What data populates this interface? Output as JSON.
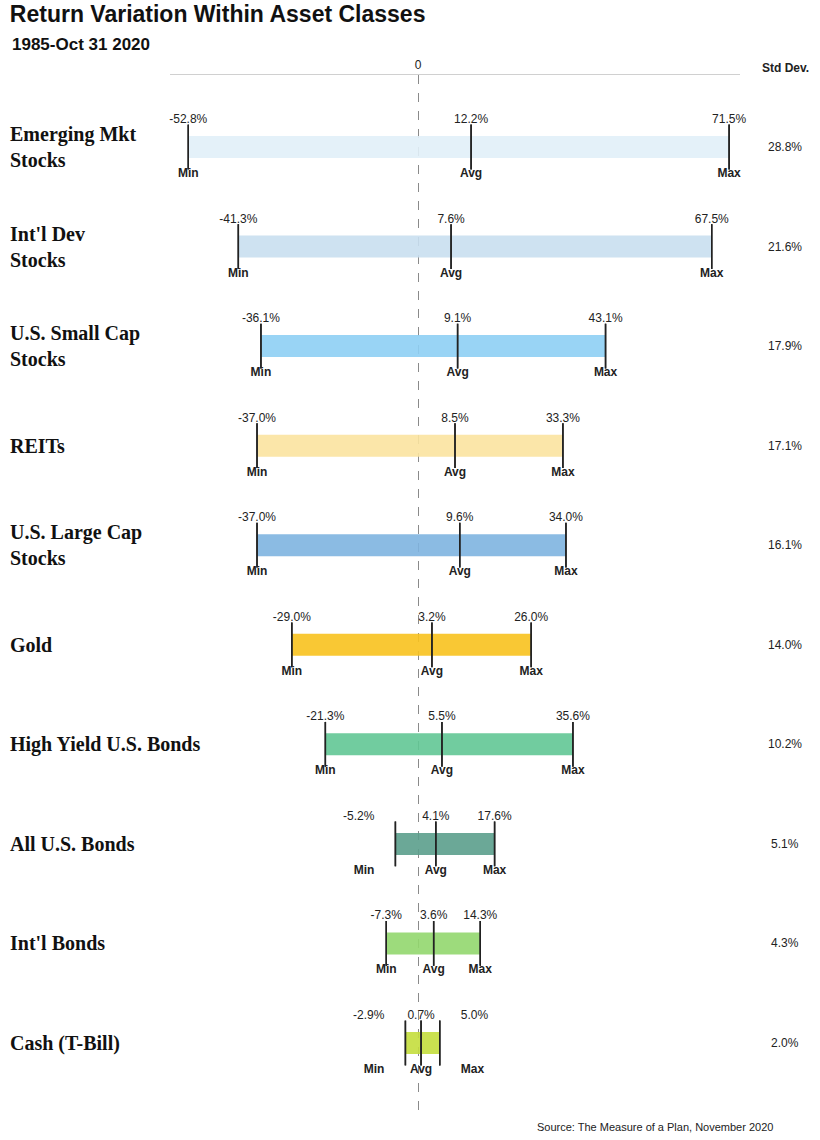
{
  "chart_data": {
    "type": "range",
    "orientation": "horizontal",
    "title": "Return Variation Within Asset Classes",
    "subtitle": "1985-Oct 31 2020",
    "categories": [
      "Emerging Mkt\nStocks",
      "Int'l Dev\nStocks",
      "U.S. Small Cap\nStocks",
      "REITs",
      "U.S. Large Cap\nStocks",
      "Gold",
      "High Yield U.S. Bonds",
      "All U.S. Bonds",
      "Int'l Bonds",
      "Cash (T-Bill)"
    ],
    "colors": [
      "#e2f0f9",
      "#c9dff0",
      "#8fd0f5",
      "#fbe4a0",
      "#7fb4e0",
      "#f9c31f",
      "#62c795",
      "#5c9f8c",
      "#93d86e",
      "#c5de3e"
    ],
    "series": [
      {
        "name": "Min",
        "values": [
          -52.8,
          -41.3,
          -36.1,
          -37.0,
          -37.0,
          -29.0,
          -21.3,
          -5.2,
          -7.3,
          -2.9
        ],
        "value_labels": [
          "-52.8%",
          "-41.3%",
          "-36.1%",
          "-37.0%",
          "-37.0%",
          "-29.0%",
          "-21.3%",
          "-5.2%",
          "-7.3%",
          "-2.9%"
        ]
      },
      {
        "name": "Avg",
        "values": [
          12.2,
          7.6,
          9.1,
          8.5,
          9.6,
          3.2,
          5.5,
          4.1,
          3.6,
          0.7
        ],
        "value_labels": [
          "12.2%",
          "7.6%",
          "9.1%",
          "8.5%",
          "9.6%",
          "3.2%",
          "5.5%",
          "4.1%",
          "3.6%",
          "0.7%"
        ]
      },
      {
        "name": "Max",
        "values": [
          71.5,
          67.5,
          43.1,
          33.3,
          34.0,
          26.0,
          35.6,
          17.6,
          14.3,
          5.0
        ],
        "value_labels": [
          "71.5%",
          "67.5%",
          "43.1%",
          "33.3%",
          "34.0%",
          "26.0%",
          "35.6%",
          "17.6%",
          "14.3%",
          "5.0%"
        ]
      }
    ],
    "std_dev": {
      "name": "Std Dev.",
      "values": [
        28.8,
        21.6,
        17.9,
        17.1,
        16.1,
        14.0,
        10.2,
        5.1,
        4.3,
        2.0
      ],
      "value_labels": [
        "28.8%",
        "21.6%",
        "17.9%",
        "17.1%",
        "16.1%",
        "14.0%",
        "10.2%",
        "5.1%",
        "4.3%",
        "2.0%"
      ]
    },
    "xlim": [
      -57,
      74
    ],
    "xticks": [
      0
    ],
    "grid": true,
    "tick_labels": "x",
    "data_labels": true,
    "source": "Source: The Measure of a Plan, November 2020"
  }
}
